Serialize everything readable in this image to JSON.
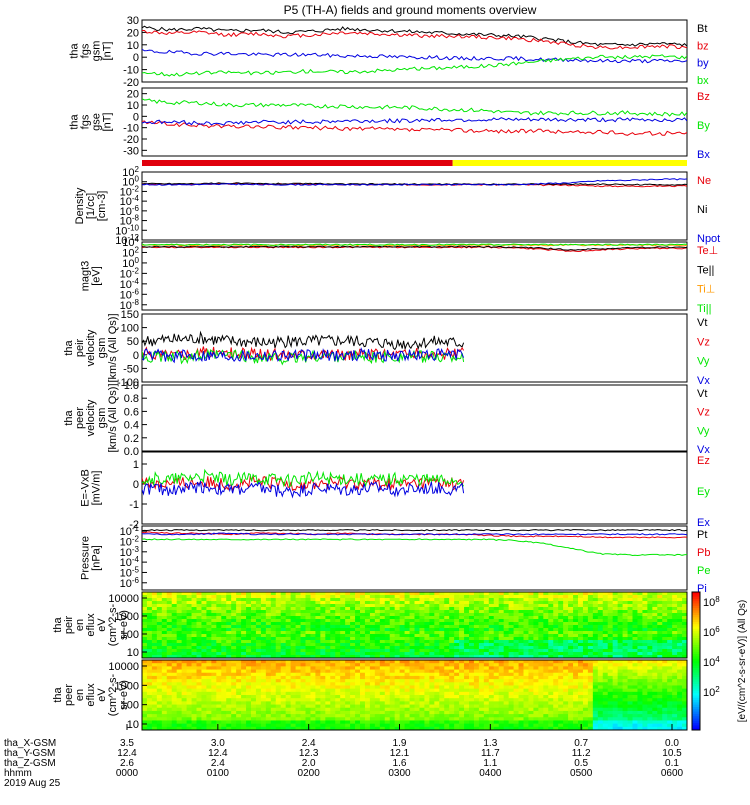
{
  "title": "P5 (TH-A) fields and ground moments overview",
  "colors": {
    "black": "#000000",
    "red": "#e8000b",
    "green": "#00e600",
    "blue": "#0000e0",
    "yellow": "#ffff00",
    "bar_red": "#e0000d"
  },
  "chart_data": [
    {
      "type": "line",
      "id": "fgs-gsm",
      "ylabel": [
        "tha",
        "fgs",
        "gsm",
        "[nT]"
      ],
      "yticks": [
        "30",
        "20",
        "10",
        "0",
        "-10",
        "-20"
      ],
      "ylim": [
        -20,
        30
      ],
      "series": [
        {
          "name": "Bt",
          "color": "#000000",
          "values": [
            24,
            22,
            23,
            21,
            22,
            20,
            21,
            23,
            22,
            21,
            20,
            19,
            18,
            17,
            15,
            12,
            10,
            10,
            11,
            10
          ]
        },
        {
          "name": "bz",
          "color": "#e8000b",
          "values": [
            21,
            19,
            20,
            18,
            19,
            17,
            18,
            20,
            19,
            18,
            17,
            17,
            16,
            15,
            13,
            10,
            8,
            8,
            9,
            8
          ]
        },
        {
          "name": "by",
          "color": "#0000e0",
          "values": [
            5,
            4,
            3,
            3,
            2,
            2,
            2,
            1,
            1,
            0,
            0,
            -1,
            -1,
            -1,
            -2,
            -2,
            -3,
            -3,
            -3,
            -3
          ]
        },
        {
          "name": "bx",
          "color": "#00e600",
          "values": [
            -12,
            -14,
            -13,
            -12,
            -13,
            -12,
            -11,
            -12,
            -11,
            -10,
            -9,
            -8,
            -7,
            -5,
            -3,
            -1,
            0,
            0,
            1,
            0
          ]
        }
      ]
    },
    {
      "type": "line",
      "id": "fgs-gse",
      "ylabel": [
        "tha",
        "fgs",
        "gse",
        "[nT]"
      ],
      "yticks": [
        "20",
        "10",
        "0",
        "-10",
        "-20",
        "-30"
      ],
      "ylim": [
        -35,
        25
      ],
      "series": [
        {
          "name": "Bz",
          "color": "#e8000b",
          "values": [
            -5,
            -7,
            -8,
            -9,
            -9,
            -10,
            -10,
            -11,
            -11,
            -12,
            -12,
            -12,
            -13,
            -13,
            -13,
            -14,
            -14,
            -15,
            -15,
            -15
          ]
        },
        {
          "name": "By",
          "color": "#00e600",
          "values": [
            14,
            12,
            12,
            10,
            10,
            10,
            9,
            9,
            8,
            8,
            7,
            6,
            5,
            3,
            3,
            3,
            3,
            3,
            2,
            2
          ]
        },
        {
          "name": "Bx",
          "color": "#0000e0",
          "values": [
            -5,
            -5,
            -6,
            -6,
            -5,
            -5,
            -5,
            -4,
            -4,
            -4,
            -3,
            -3,
            -3,
            -3,
            -3,
            -3,
            -3,
            -3,
            -3,
            -3
          ]
        }
      ]
    },
    {
      "type": "line",
      "id": "density",
      "ylabel": [
        "Density",
        "[1/cc]",
        "[cm-3]"
      ],
      "yticks": [
        "10^2",
        "10^0",
        "10^-2",
        "10^-4",
        "10^-6",
        "10^-8",
        "10^-10",
        "10^-12"
      ],
      "ylim": [
        -12,
        2
      ],
      "log": true,
      "series": [
        {
          "name": "Ne",
          "color": "#e8000b",
          "values": [
            -0.5,
            -0.5,
            -0.5,
            -0.4,
            -0.5,
            -0.5,
            -0.5,
            -0.6,
            -0.6,
            -0.6,
            -0.6,
            -0.6,
            -0.6,
            -0.6,
            -0.7,
            -0.7,
            -0.9,
            -0.9,
            -0.9,
            -0.9
          ]
        },
        {
          "name": "Ni",
          "color": "#000000",
          "values": [
            -0.4,
            -0.4,
            -0.4,
            -0.3,
            -0.4,
            -0.4,
            -0.4,
            -0.5,
            -0.5,
            -0.5,
            -0.5,
            -0.5,
            -0.5,
            -0.5,
            -0.5,
            -0.5,
            -0.5,
            -0.6,
            -0.6,
            -0.6
          ]
        },
        {
          "name": "Npot",
          "color": "#0000e0",
          "values": [
            -0.6,
            -0.6,
            -0.6,
            -0.5,
            -0.6,
            -0.6,
            -0.6,
            -0.6,
            -0.6,
            -0.6,
            -0.6,
            -0.6,
            -0.6,
            -0.6,
            -0.4,
            -0.2,
            0.2,
            0.3,
            0.5,
            0.5
          ]
        }
      ]
    },
    {
      "type": "line",
      "id": "temperature",
      "ylabel": [
        "magt3",
        "[eV]"
      ],
      "yticks": [
        "10^4",
        "10^2",
        "10^0",
        "10^-2",
        "10^-4",
        "10^-6",
        "10^-8"
      ],
      "ylim": [
        -9,
        4
      ],
      "log": true,
      "series": [
        {
          "name": "Te⊥",
          "color": "#e8000b",
          "values": [
            3.0,
            3.0,
            3.0,
            3.0,
            3.0,
            3.0,
            3.0,
            3.0,
            3.0,
            3.0,
            3.0,
            3.0,
            3.0,
            2.9,
            2.6,
            2.2,
            2.5,
            2.7,
            2.8,
            2.8
          ]
        },
        {
          "name": "Te||",
          "color": "#000000",
          "values": [
            3.1,
            3.1,
            3.1,
            3.1,
            3.1,
            3.1,
            3.1,
            3.1,
            3.1,
            3.1,
            3.1,
            3.1,
            3.1,
            3.0,
            2.8,
            2.5,
            2.7,
            2.9,
            3.0,
            3.0
          ]
        },
        {
          "name": "Ti⊥",
          "color": "#ff9900",
          "values": [
            3.4,
            3.4,
            3.4,
            3.4,
            3.4,
            3.4,
            3.4,
            3.4,
            3.4,
            3.4,
            3.4,
            3.4,
            3.4,
            3.4,
            3.4,
            3.4,
            3.4,
            3.4,
            3.4,
            3.4
          ]
        },
        {
          "name": "Ti||",
          "color": "#00e600",
          "values": [
            3.5,
            3.5,
            3.5,
            3.5,
            3.5,
            3.5,
            3.5,
            3.5,
            3.5,
            3.5,
            3.5,
            3.5,
            3.5,
            3.5,
            3.5,
            3.5,
            3.5,
            3.5,
            3.5,
            3.5
          ]
        }
      ]
    },
    {
      "type": "line",
      "id": "peir-velocity",
      "ylabel": [
        "tha",
        "peir",
        "velocity",
        "gsm",
        "[km/s (All Qs)]"
      ],
      "yticks": [
        "150",
        "100",
        "50",
        "0",
        "-50",
        "-100"
      ],
      "ylim": [
        -100,
        150
      ],
      "data_end_fraction": 0.59,
      "series": [
        {
          "name": "Vt",
          "color": "#000000",
          "values": [
            50,
            55,
            60,
            50,
            45,
            48,
            50,
            52,
            45,
            40,
            48,
            42
          ]
        },
        {
          "name": "Vz",
          "color": "#e8000b",
          "values": [
            5,
            0,
            10,
            5,
            0,
            3,
            5,
            0,
            2,
            5,
            0,
            3
          ]
        },
        {
          "name": "Vy",
          "color": "#00e600",
          "values": [
            -5,
            -10,
            -5,
            0,
            -10,
            -15,
            -5,
            -5,
            -10,
            -5,
            -8,
            -5
          ]
        },
        {
          "name": "Vx",
          "color": "#0000e0",
          "values": [
            0,
            -5,
            0,
            -2,
            0,
            0,
            -3,
            0,
            0,
            -2,
            0,
            0
          ]
        }
      ]
    },
    {
      "type": "line",
      "id": "peer-velocity",
      "ylabel": [
        "tha",
        "peer",
        "velocity",
        "gsm",
        "[km/s (All Qs)]"
      ],
      "yticks": [
        "1.0",
        "0.8",
        "0.6",
        "0.4",
        "0.2",
        "0.0"
      ],
      "ylim": [
        0,
        1
      ],
      "series": [
        {
          "name": "Vt",
          "color": "#000000",
          "values": []
        },
        {
          "name": "Vz",
          "color": "#e8000b",
          "values": []
        },
        {
          "name": "Vy",
          "color": "#00e600",
          "values": []
        },
        {
          "name": "Vx",
          "color": "#0000e0",
          "values": []
        }
      ]
    },
    {
      "type": "line",
      "id": "efield",
      "ylabel": [
        "E=-VxB",
        "[mV/m]"
      ],
      "yticks": [
        "1",
        "0",
        "-1",
        "-2"
      ],
      "ylim": [
        -2,
        1.6
      ],
      "data_end_fraction": 0.59,
      "series": [
        {
          "name": "Ez",
          "color": "#e8000b",
          "values": [
            0.1,
            0.0,
            0.1,
            0.0,
            0.1,
            0.0,
            0.0,
            0.1,
            0.0,
            0.0,
            0.1,
            0.0
          ]
        },
        {
          "name": "Ey",
          "color": "#00e600",
          "values": [
            0.3,
            0.2,
            0.4,
            0.2,
            0.3,
            0.2,
            0.3,
            0.3,
            0.2,
            0.3,
            0.2,
            0.2
          ]
        },
        {
          "name": "Ex",
          "color": "#0000e0",
          "values": [
            -0.2,
            -0.3,
            -0.1,
            -0.3,
            -0.2,
            -0.4,
            -0.2,
            -0.3,
            -0.2,
            -0.3,
            -0.2,
            -0.3
          ]
        }
      ]
    },
    {
      "type": "line",
      "id": "pressure",
      "ylabel": [
        "Pressure",
        "[nPa]"
      ],
      "yticks": [
        "10^-1",
        "10^-2",
        "10^-3",
        "10^-4",
        "10^-5",
        "10^-6"
      ],
      "ylim": [
        -6.7,
        -0.5
      ],
      "log": true,
      "series": [
        {
          "name": "Pt",
          "color": "#000000",
          "values": [
            -0.9,
            -0.9,
            -0.9,
            -0.9,
            -0.9,
            -0.9,
            -0.9,
            -0.9,
            -0.9,
            -0.9,
            -0.9,
            -0.9,
            -0.9,
            -0.9,
            -0.9,
            -0.9,
            -0.9,
            -0.9,
            -0.9,
            -0.9
          ]
        },
        {
          "name": "Pb",
          "color": "#e8000b",
          "values": [
            -1.1,
            -1.2,
            -1.2,
            -1.3,
            -1.2,
            -1.2,
            -1.3,
            -1.2,
            -1.3,
            -1.3,
            -1.3,
            -1.3,
            -1.4,
            -1.5,
            -1.5,
            -1.5,
            -1.6,
            -1.6,
            -1.6,
            -1.6
          ]
        },
        {
          "name": "Pe",
          "color": "#00e600",
          "values": [
            -1.8,
            -1.8,
            -1.8,
            -1.8,
            -1.8,
            -1.8,
            -1.8,
            -1.8,
            -1.8,
            -1.8,
            -1.8,
            -1.8,
            -1.8,
            -1.9,
            -2.2,
            -2.7,
            -3.2,
            -3.3,
            -3.3,
            -3.3
          ]
        },
        {
          "name": "Pi",
          "color": "#0000e0",
          "values": [
            -1.3,
            -1.3,
            -1.3,
            -1.2,
            -1.3,
            -1.3,
            -1.3,
            -1.3,
            -1.3,
            -1.3,
            -1.3,
            -1.3,
            -1.3,
            -1.3,
            -1.3,
            -1.3,
            -1.3,
            -1.3,
            -1.3,
            -1.3
          ]
        }
      ]
    },
    {
      "type": "heatmap",
      "id": "peir-spectrogram",
      "ylabel": [
        "tha",
        "peir",
        "en",
        "eflux",
        "eV",
        "(cm^2-s-",
        "sr-eV)"
      ],
      "yticks": [
        "10000",
        "1000",
        "100",
        "10"
      ],
      "ylim": [
        10,
        10000
      ]
    },
    {
      "type": "heatmap",
      "id": "peer-spectrogram",
      "ylabel": [
        "tha",
        "peer",
        "en",
        "eflux",
        "eV",
        "(cm^2-s-",
        "sr-eV)"
      ],
      "yticks": [
        "10000",
        "1000",
        "100",
        "10"
      ],
      "ylim": [
        10,
        10000
      ]
    }
  ],
  "colorbar": {
    "label": "[eV/(cm^2-s-sr-eV)] (All Qs)",
    "ticks": [
      "10^8",
      "10^6",
      "10^4",
      "10^2"
    ]
  },
  "xaxis": {
    "rows": [
      {
        "label": "tha_X-GSM",
        "values": [
          "3.5",
          "3.0",
          "2.4",
          "1.9",
          "1.3",
          "0.7",
          "0.0"
        ]
      },
      {
        "label": "tha_Y-GSM",
        "values": [
          "12.4",
          "12.4",
          "12.3",
          "12.1",
          "11.7",
          "11.2",
          "10.5"
        ]
      },
      {
        "label": "tha_Z-GSM",
        "values": [
          "2.6",
          "2.4",
          "2.0",
          "1.6",
          "1.1",
          "0.5",
          "0.1"
        ]
      },
      {
        "label": "hhmm",
        "values": [
          "0000",
          "0100",
          "0200",
          "0300",
          "0400",
          "0500",
          "0600"
        ]
      }
    ],
    "date": "2019 Aug 25"
  }
}
